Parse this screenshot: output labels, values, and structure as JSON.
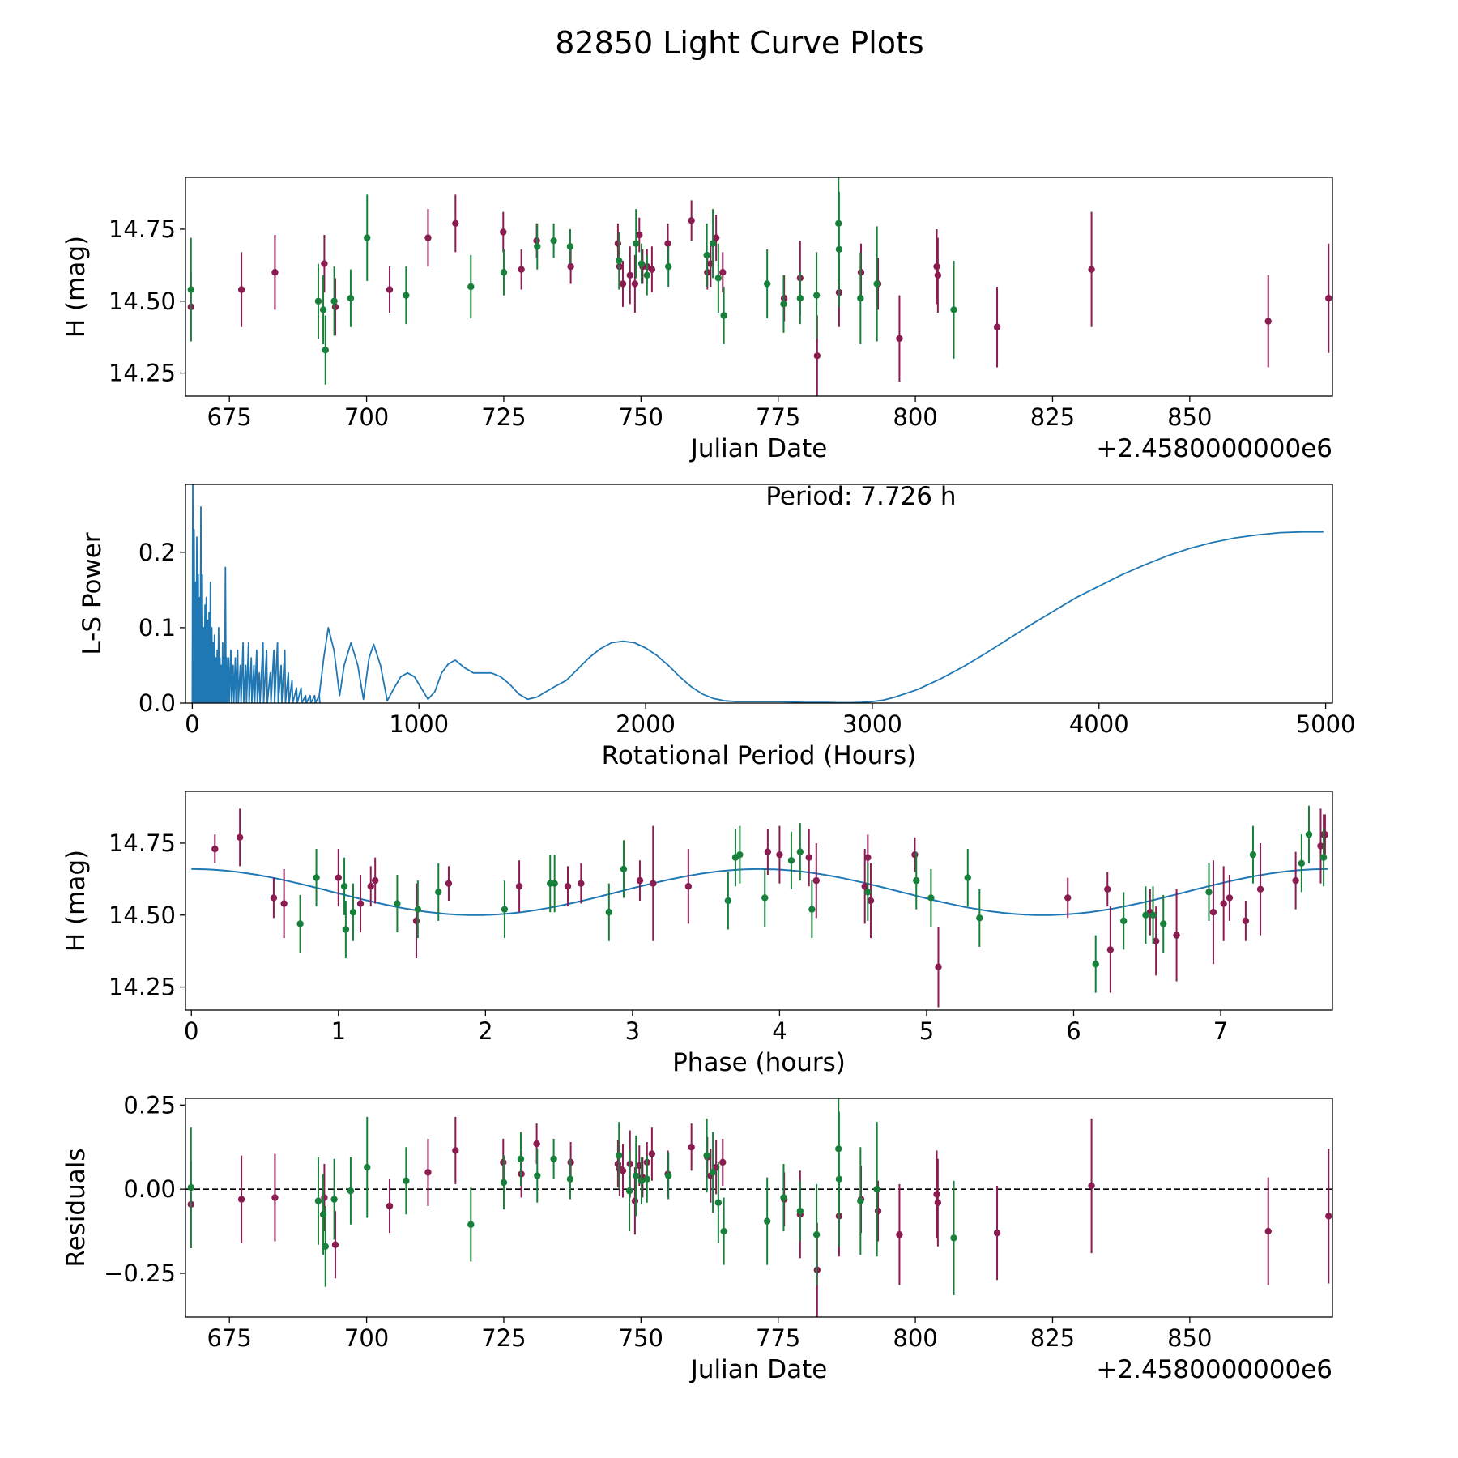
{
  "figure": {
    "title": "82850 Light Curve Plots",
    "colors": {
      "red": "#8a1c51",
      "green": "#17803a",
      "curve": "#1f77b4",
      "axis": "#000000"
    }
  },
  "chart_data": [
    {
      "id": "lightcurve",
      "type": "scatter",
      "title": "",
      "xlabel": "Julian Date",
      "ylabel": "H (mag)",
      "offset_label": "+2.4580000000e6",
      "xlim": [
        667,
        876
      ],
      "ylim": [
        14.17,
        14.93
      ],
      "xticks": [
        675,
        700,
        725,
        750,
        775,
        800,
        825,
        850
      ],
      "yticks": [
        14.25,
        14.5,
        14.75
      ],
      "ytick_labels": [
        "14.25",
        "14.50",
        "14.75"
      ],
      "series": [
        {
          "name": "red",
          "color": "red",
          "x": [
            668,
            677.2,
            683.3,
            692.3,
            694.3,
            704.2,
            711.2,
            716.2,
            724.9,
            728.2,
            731,
            737.2,
            745.8,
            746.1,
            746.7,
            748,
            748.9,
            749.7,
            750.3,
            751.1,
            752,
            754.9,
            759.2,
            762.1,
            762.7,
            763.7,
            764.9,
            776.1,
            779,
            782.1,
            786.1,
            790.1,
            793.2,
            797.1,
            803.9,
            804.1,
            814.9,
            832.1,
            864.3,
            875.3
          ],
          "y": [
            14.48,
            14.54,
            14.6,
            14.63,
            14.48,
            14.54,
            14.72,
            14.77,
            14.74,
            14.61,
            14.71,
            14.62,
            14.7,
            14.62,
            14.56,
            14.59,
            14.56,
            14.73,
            14.62,
            14.62,
            14.61,
            14.7,
            14.78,
            14.6,
            14.63,
            14.72,
            14.6,
            14.51,
            14.58,
            14.31,
            14.53,
            14.6,
            14.56,
            14.37,
            14.62,
            14.59,
            14.41,
            14.61,
            14.43,
            14.51
          ],
          "err": [
            0.12,
            0.13,
            0.13,
            0.1,
            0.1,
            0.08,
            0.1,
            0.1,
            0.07,
            0.07,
            0.06,
            0.06,
            0.07,
            0.08,
            0.08,
            0.1,
            0.1,
            0.06,
            0.06,
            0.06,
            0.08,
            0.07,
            0.07,
            0.06,
            0.08,
            0.08,
            0.07,
            0.08,
            0.13,
            0.14,
            0.12,
            0.1,
            0.09,
            0.15,
            0.13,
            0.13,
            0.14,
            0.2,
            0.16,
            0.19
          ]
        },
        {
          "name": "green",
          "color": "green",
          "x": [
            668,
            691.2,
            692.1,
            692.5,
            694.1,
            697.1,
            700.1,
            707.2,
            719,
            725,
            731.1,
            734.1,
            737.1,
            746,
            749.1,
            750.1,
            751.1,
            755,
            762,
            763.1,
            764.1,
            765.1,
            773,
            776,
            779,
            782,
            786,
            786.1,
            790,
            793,
            807
          ],
          "y": [
            14.54,
            14.5,
            14.47,
            14.33,
            14.5,
            14.51,
            14.72,
            14.52,
            14.55,
            14.6,
            14.69,
            14.71,
            14.69,
            14.64,
            14.7,
            14.63,
            14.59,
            14.62,
            14.66,
            14.7,
            14.58,
            14.45,
            14.56,
            14.49,
            14.51,
            14.52,
            14.77,
            14.68,
            14.51,
            14.56,
            14.47
          ],
          "err": [
            0.18,
            0.13,
            0.12,
            0.12,
            0.12,
            0.1,
            0.15,
            0.1,
            0.11,
            0.08,
            0.08,
            0.06,
            0.06,
            0.1,
            0.12,
            0.07,
            0.07,
            0.07,
            0.11,
            0.12,
            0.12,
            0.1,
            0.12,
            0.1,
            0.09,
            0.15,
            0.2,
            0.2,
            0.16,
            0.2,
            0.17
          ]
        }
      ]
    },
    {
      "id": "periodogram",
      "type": "line",
      "title": "",
      "xlabel": "Rotational Period (Hours)",
      "ylabel": "L-S Power",
      "annotation": "Period: 7.726 h",
      "xlim": [
        -30,
        5030
      ],
      "ylim": [
        0,
        0.29
      ],
      "xticks": [
        0,
        1000,
        2000,
        3000,
        4000,
        5000
      ],
      "yticks": [
        0.0,
        0.1,
        0.2
      ],
      "ytick_labels": [
        "0.0",
        "0.1",
        "0.2"
      ],
      "spikes": {
        "x": [
          2,
          8,
          14,
          20,
          26,
          32,
          38,
          44,
          50,
          56,
          62,
          68,
          74,
          80,
          86,
          92,
          98,
          104,
          110,
          116,
          122,
          128,
          134,
          140,
          146,
          152,
          160,
          170,
          180,
          190,
          200,
          212,
          224,
          236,
          248,
          260,
          272,
          284,
          296,
          312,
          328,
          344,
          360,
          376,
          392,
          408,
          424,
          440,
          460,
          480,
          500,
          520,
          540,
          560
        ],
        "y": [
          0.29,
          0.23,
          0.16,
          0.22,
          0.17,
          0.14,
          0.26,
          0.17,
          0.1,
          0.13,
          0.14,
          0.11,
          0.12,
          0.16,
          0.1,
          0.08,
          0.09,
          0.06,
          0.07,
          0.1,
          0.06,
          0.05,
          0.08,
          0.06,
          0.18,
          0.06,
          0.06,
          0.07,
          0.05,
          0.06,
          0.07,
          0.05,
          0.08,
          0.05,
          0.08,
          0.06,
          0.05,
          0.07,
          0.04,
          0.08,
          0.07,
          0.04,
          0.07,
          0.08,
          0.05,
          0.07,
          0.04,
          0.03,
          0.02,
          0.02,
          0.01,
          0.01,
          0.01,
          0.01
        ]
      },
      "smooth": {
        "x": [
          560,
          580,
          600,
          625,
          650,
          670,
          700,
          730,
          755,
          780,
          800,
          830,
          860,
          890,
          920,
          950,
          980,
          1010,
          1040,
          1070,
          1100,
          1130,
          1160,
          1200,
          1240,
          1280,
          1320,
          1360,
          1400,
          1440,
          1480,
          1520,
          1560,
          1600,
          1650,
          1700,
          1750,
          1800,
          1850,
          1900,
          1950,
          2000,
          2050,
          2100,
          2150,
          2200,
          2250,
          2300,
          2350,
          2400,
          2450,
          2500,
          2550,
          2600,
          2700,
          2800,
          2850,
          2900,
          2950,
          3000,
          3050,
          3100,
          3200,
          3300,
          3400,
          3500,
          3600,
          3700,
          3800,
          3900,
          4000,
          4100,
          4200,
          4300,
          4400,
          4500,
          4600,
          4700,
          4800,
          4900,
          4990
        ],
        "y": [
          0.01,
          0.06,
          0.1,
          0.07,
          0.01,
          0.05,
          0.08,
          0.05,
          0.005,
          0.06,
          0.078,
          0.05,
          0.003,
          0.02,
          0.035,
          0.04,
          0.035,
          0.02,
          0.005,
          0.015,
          0.04,
          0.052,
          0.057,
          0.047,
          0.04,
          0.04,
          0.04,
          0.035,
          0.025,
          0.012,
          0.005,
          0.008,
          0.015,
          0.022,
          0.03,
          0.045,
          0.06,
          0.072,
          0.08,
          0.082,
          0.08,
          0.073,
          0.063,
          0.05,
          0.035,
          0.022,
          0.012,
          0.006,
          0.003,
          0.002,
          0.002,
          0.002,
          0.002,
          0.002,
          0.001,
          0.001,
          0.0005,
          0.0005,
          0.001,
          0.002,
          0.004,
          0.008,
          0.018,
          0.032,
          0.048,
          0.066,
          0.085,
          0.104,
          0.122,
          0.14,
          0.155,
          0.17,
          0.183,
          0.195,
          0.205,
          0.213,
          0.219,
          0.223,
          0.226,
          0.227,
          0.227
        ]
      }
    },
    {
      "id": "phase",
      "type": "scatter",
      "title": "",
      "xlabel": "Phase (hours)",
      "ylabel": "H (mag)",
      "xlim": [
        -0.04,
        7.76
      ],
      "ylim": [
        14.17,
        14.93
      ],
      "xticks": [
        0,
        1,
        2,
        3,
        4,
        5,
        6,
        7
      ],
      "yticks": [
        14.25,
        14.5,
        14.75
      ],
      "ytick_labels": [
        "14.25",
        "14.50",
        "14.75"
      ],
      "model": {
        "mean": 14.58,
        "amplitude": 0.08,
        "period": 3.863,
        "peak_phase": 0.0
      },
      "series": [
        {
          "name": "red",
          "color": "red",
          "x": [
            0.16,
            0.33,
            0.56,
            0.63,
            1.0,
            1.15,
            1.22,
            1.25,
            1.53,
            1.75,
            2.23,
            2.56,
            2.65,
            3.05,
            3.14,
            3.38,
            3.92,
            4.0,
            4.2,
            4.25,
            4.58,
            4.6,
            4.62,
            4.92,
            5.08,
            5.96,
            6.23,
            6.25,
            6.52,
            6.56,
            6.7,
            6.95,
            7.02,
            7.06,
            7.17,
            7.27,
            7.51,
            7.68,
            7.7,
            7.71
          ],
          "y": [
            14.73,
            14.77,
            14.56,
            14.54,
            14.63,
            14.54,
            14.6,
            14.62,
            14.48,
            14.61,
            14.6,
            14.6,
            14.61,
            14.62,
            14.61,
            14.6,
            14.72,
            14.71,
            14.7,
            14.62,
            14.6,
            14.7,
            14.55,
            14.71,
            14.32,
            14.56,
            14.59,
            14.38,
            14.51,
            14.41,
            14.43,
            14.51,
            14.54,
            14.56,
            14.48,
            14.59,
            14.62,
            14.74,
            14.78,
            14.78
          ],
          "err": [
            0.05,
            0.1,
            0.07,
            0.12,
            0.1,
            0.1,
            0.07,
            0.08,
            0.13,
            0.06,
            0.09,
            0.07,
            0.07,
            0.07,
            0.2,
            0.13,
            0.08,
            0.1,
            0.1,
            0.13,
            0.13,
            0.08,
            0.13,
            0.06,
            0.14,
            0.07,
            0.06,
            0.15,
            0.08,
            0.12,
            0.16,
            0.18,
            0.13,
            0.08,
            0.07,
            0.16,
            0.1,
            0.13,
            0.07,
            0.07
          ]
        },
        {
          "name": "green",
          "color": "green",
          "x": [
            0.74,
            0.85,
            1.04,
            1.05,
            1.1,
            1.4,
            1.54,
            1.68,
            2.13,
            2.44,
            2.47,
            2.84,
            2.94,
            3.65,
            3.7,
            3.73,
            3.9,
            4.08,
            4.14,
            4.22,
            4.6,
            4.93,
            5.03,
            5.28,
            5.36,
            6.15,
            6.34,
            6.49,
            6.54,
            6.61,
            6.92,
            7.22,
            7.55,
            7.6,
            7.7
          ],
          "y": [
            14.47,
            14.63,
            14.6,
            14.45,
            14.51,
            14.54,
            14.52,
            14.58,
            14.52,
            14.61,
            14.61,
            14.51,
            14.66,
            14.55,
            14.7,
            14.71,
            14.56,
            14.69,
            14.72,
            14.52,
            14.58,
            14.62,
            14.56,
            14.63,
            14.49,
            14.33,
            14.48,
            14.5,
            14.5,
            14.47,
            14.58,
            14.71,
            14.68,
            14.78,
            14.7
          ]
        }
      ]
    },
    {
      "id": "residuals",
      "type": "scatter",
      "title": "",
      "xlabel": "Julian Date",
      "ylabel": "Residuals",
      "offset_label": "+2.4580000000e6",
      "xlim": [
        667,
        876
      ],
      "ylim": [
        -0.38,
        0.27
      ],
      "xticks": [
        675,
        700,
        725,
        750,
        775,
        800,
        825,
        850
      ],
      "yticks": [
        -0.25,
        0.0,
        0.25
      ],
      "ytick_labels": [
        "−0.25",
        "0.00",
        "0.25"
      ],
      "zero_line": 0,
      "series": [
        {
          "name": "red",
          "color": "red",
          "x": [
            668,
            677.2,
            683.3,
            692.3,
            694.3,
            704.2,
            711.2,
            716.2,
            724.9,
            728.2,
            731,
            737.2,
            745.8,
            746.1,
            746.7,
            748,
            748.9,
            749.7,
            750.3,
            751.1,
            752,
            754.9,
            759.2,
            762.1,
            762.7,
            763.7,
            764.9,
            776.1,
            779,
            782.1,
            786.1,
            790.1,
            793.2,
            797.1,
            803.9,
            804.1,
            814.9,
            832.1,
            864.3,
            875.3
          ],
          "y": [
            -0.045,
            -0.03,
            -0.025,
            -0.025,
            -0.165,
            -0.05,
            0.05,
            0.115,
            0.08,
            0.045,
            0.135,
            0.08,
            0.075,
            0.06,
            0.055,
            0.075,
            -0.035,
            0.07,
            0.035,
            0.08,
            0.105,
            0.045,
            0.125,
            0.095,
            0.04,
            0.065,
            0.08,
            -0.03,
            -0.075,
            -0.24,
            -0.08,
            -0.03,
            -0.065,
            -0.135,
            -0.015,
            -0.04,
            -0.13,
            0.01,
            -0.125,
            -0.08
          ],
          "err": [
            0.13,
            0.13,
            0.13,
            0.1,
            0.1,
            0.08,
            0.1,
            0.1,
            0.07,
            0.07,
            0.06,
            0.06,
            0.07,
            0.08,
            0.08,
            0.1,
            0.1,
            0.06,
            0.06,
            0.06,
            0.08,
            0.07,
            0.07,
            0.06,
            0.08,
            0.08,
            0.07,
            0.08,
            0.13,
            0.14,
            0.12,
            0.1,
            0.09,
            0.15,
            0.13,
            0.13,
            0.14,
            0.2,
            0.16,
            0.2
          ]
        },
        {
          "name": "green",
          "color": "green",
          "x": [
            668,
            691.2,
            692.1,
            692.5,
            694.1,
            697.1,
            700.1,
            707.2,
            719,
            725,
            728.1,
            731.1,
            734.1,
            737.1,
            746,
            747.9,
            749.1,
            750.1,
            751.1,
            755,
            762,
            763.1,
            764.1,
            765.1,
            773,
            776,
            779,
            782,
            786,
            786.1,
            790,
            793,
            807
          ],
          "y": [
            0.005,
            -0.035,
            -0.075,
            -0.17,
            -0.03,
            -0.005,
            0.065,
            0.025,
            -0.105,
            0.02,
            0.09,
            0.04,
            0.09,
            0.03,
            0.1,
            -0.005,
            0.04,
            0.025,
            0.03,
            0.04,
            0.1,
            0.05,
            -0.04,
            -0.125,
            -0.095,
            -0.025,
            -0.065,
            -0.135,
            0.12,
            0.03,
            -0.035,
            0.0,
            -0.145
          ],
          "err": [
            0.18,
            0.13,
            0.12,
            0.12,
            0.12,
            0.1,
            0.15,
            0.1,
            0.11,
            0.08,
            0.08,
            0.08,
            0.06,
            0.06,
            0.1,
            0.12,
            0.12,
            0.07,
            0.07,
            0.07,
            0.11,
            0.12,
            0.12,
            0.1,
            0.13,
            0.1,
            0.09,
            0.15,
            0.2,
            0.2,
            0.16,
            0.2,
            0.17
          ]
        }
      ]
    }
  ]
}
